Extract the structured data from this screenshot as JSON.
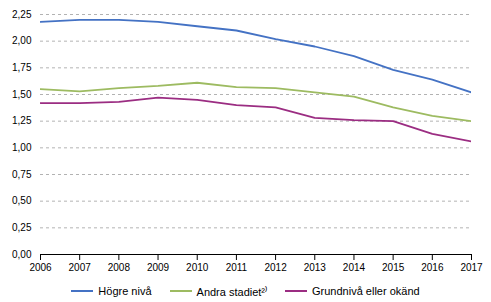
{
  "chart_data": {
    "type": "line",
    "x": [
      2006,
      2007,
      2008,
      2009,
      2010,
      2011,
      2012,
      2013,
      2014,
      2015,
      2016,
      2017
    ],
    "series": [
      {
        "name": "Högre nivå",
        "color": "#4472c4",
        "values": [
          2.18,
          2.2,
          2.2,
          2.18,
          2.14,
          2.1,
          2.02,
          1.95,
          1.86,
          1.73,
          1.64,
          1.52
        ]
      },
      {
        "name": "Andra stadiet²⁾",
        "color": "#9dbb61",
        "values": [
          1.55,
          1.53,
          1.56,
          1.58,
          1.61,
          1.57,
          1.56,
          1.52,
          1.48,
          1.38,
          1.3,
          1.25
        ]
      },
      {
        "name": "Grundnivå eller okänd",
        "color": "#9b2d82",
        "values": [
          1.42,
          1.42,
          1.43,
          1.47,
          1.45,
          1.4,
          1.38,
          1.28,
          1.26,
          1.25,
          1.13,
          1.06
        ]
      }
    ],
    "xlim": [
      2006,
      2017
    ],
    "xticks": [
      2006,
      2007,
      2008,
      2009,
      2010,
      2011,
      2012,
      2013,
      2014,
      2015,
      2016,
      2017
    ],
    "ylim": [
      0.0,
      2.25
    ],
    "yticks": [
      {
        "value": 0.0,
        "label": "0,00"
      },
      {
        "value": 0.25,
        "label": "0,25"
      },
      {
        "value": 0.5,
        "label": "0,50"
      },
      {
        "value": 0.75,
        "label": "0,75"
      },
      {
        "value": 1.0,
        "label": "1,00"
      },
      {
        "value": 1.25,
        "label": "1,25"
      },
      {
        "value": 1.5,
        "label": "1,50"
      },
      {
        "value": 1.75,
        "label": "1,75"
      },
      {
        "value": 2.0,
        "label": "2,00"
      },
      {
        "value": 2.25,
        "label": "2,25"
      }
    ],
    "grid": true,
    "legend": "bottom"
  }
}
